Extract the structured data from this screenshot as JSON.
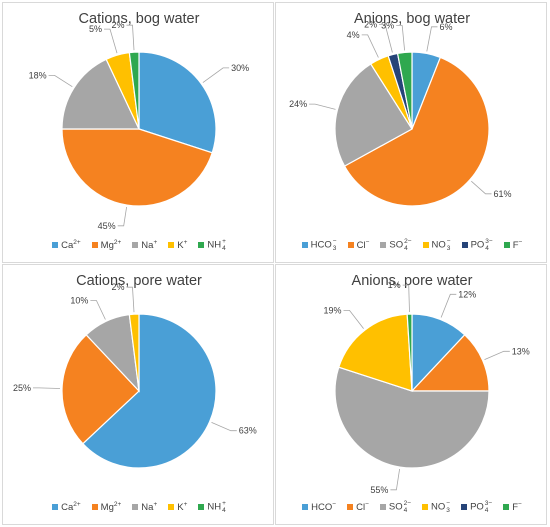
{
  "chart_data": [
    {
      "type": "pie",
      "title": "Cations, bog water",
      "legend_position": "bottom",
      "categories": [
        "Ca",
        "Mg",
        "Na",
        "K",
        "NH"
      ],
      "ion_marks": [
        {
          "base": "Ca",
          "sup": "2+",
          "sub": ""
        },
        {
          "base": "Mg",
          "sup": "2+",
          "sub": ""
        },
        {
          "base": "Na",
          "sup": "+",
          "sub": ""
        },
        {
          "base": "K",
          "sup": "+",
          "sub": ""
        },
        {
          "base": "NH",
          "sup": "+",
          "sub": "4"
        }
      ],
      "values": [
        30,
        45,
        18,
        5,
        2
      ],
      "labels": [
        "30%",
        "45%",
        "18%",
        "5%",
        "2%"
      ],
      "colors": [
        "#4a9fd6",
        "#f58220",
        "#a6a6a6",
        "#ffc000",
        "#2fa84f"
      ]
    },
    {
      "type": "pie",
      "title": "Anions, bog water",
      "legend_position": "bottom",
      "categories": [
        "HCO",
        "Cl",
        "SO",
        "NO",
        "PO",
        "F"
      ],
      "ion_marks": [
        {
          "base": "HCO",
          "sup": "−",
          "sub": "3"
        },
        {
          "base": "Cl",
          "sup": "−",
          "sub": ""
        },
        {
          "base": "SO",
          "sup": "2−",
          "sub": "4"
        },
        {
          "base": "NO",
          "sup": "−",
          "sub": "3"
        },
        {
          "base": "PO",
          "sup": "3−",
          "sub": "4"
        },
        {
          "base": "F",
          "sup": "−",
          "sub": ""
        }
      ],
      "values": [
        6,
        61,
        24,
        4,
        2,
        3
      ],
      "labels": [
        "6%",
        "61%",
        "24%",
        "4%",
        "2%",
        "3%"
      ],
      "colors": [
        "#4a9fd6",
        "#f58220",
        "#a6a6a6",
        "#ffc000",
        "#264478",
        "#2fa84f"
      ]
    },
    {
      "type": "pie",
      "title": "Cations, pore water",
      "legend_position": "bottom",
      "categories": [
        "Ca",
        "Mg",
        "Na",
        "K",
        "NH"
      ],
      "ion_marks": [
        {
          "base": "Ca",
          "sup": "2+",
          "sub": ""
        },
        {
          "base": "Mg",
          "sup": "2+",
          "sub": ""
        },
        {
          "base": "Na",
          "sup": "+",
          "sub": ""
        },
        {
          "base": "K",
          "sup": "+",
          "sub": ""
        },
        {
          "base": "NH",
          "sup": "+",
          "sub": "4"
        }
      ],
      "values": [
        63,
        25,
        10,
        2,
        0
      ],
      "labels": [
        "63%",
        "25%",
        "10%",
        "2%",
        ""
      ],
      "colors": [
        "#4a9fd6",
        "#f58220",
        "#a6a6a6",
        "#ffc000",
        "#2fa84f"
      ]
    },
    {
      "type": "pie",
      "title": "Anions, pore water",
      "legend_position": "bottom",
      "categories": [
        "HCO",
        "Cl",
        "SO",
        "NO",
        "PO",
        "F"
      ],
      "ion_marks": [
        {
          "base": "HCO",
          "sup": "−",
          "sub": ""
        },
        {
          "base": "Cl",
          "sup": "−",
          "sub": ""
        },
        {
          "base": "SO",
          "sup": "2−",
          "sub": "4"
        },
        {
          "base": "NO",
          "sup": "−",
          "sub": "3"
        },
        {
          "base": "PO",
          "sup": "3−",
          "sub": "4"
        },
        {
          "base": "F",
          "sup": "−",
          "sub": ""
        }
      ],
      "values": [
        12,
        13,
        55,
        19,
        0,
        1
      ],
      "labels": [
        "12%",
        "13%",
        "55%",
        "19%",
        "",
        "1%"
      ],
      "colors": [
        "#4a9fd6",
        "#f58220",
        "#a6a6a6",
        "#ffc000",
        "#264478",
        "#2fa84f"
      ]
    }
  ]
}
